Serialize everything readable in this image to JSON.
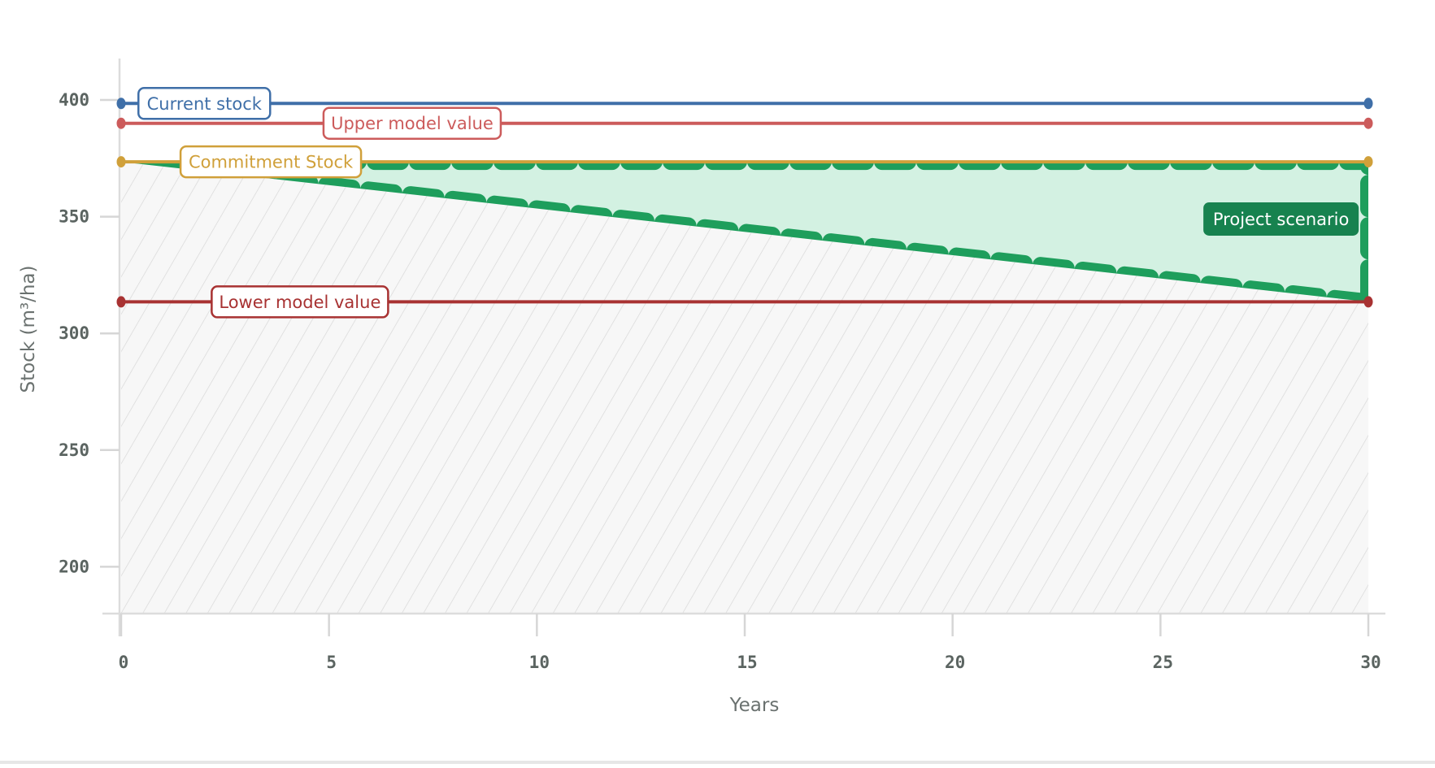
{
  "chart_data": {
    "type": "line",
    "title": "",
    "xlabel": "Years",
    "ylabel": "Stock (m³/ha)",
    "xlim": [
      0,
      30
    ],
    "ylim": [
      180,
      420
    ],
    "grid": false,
    "legend": "inline labels",
    "x_ticks": [
      0,
      5,
      10,
      15,
      20,
      25,
      30
    ],
    "y_ticks": [
      200,
      250,
      300,
      350,
      400
    ],
    "reference_lines": [
      {
        "name": "Current stock",
        "value": 398.5,
        "color": "#3f6fa8",
        "label_x": 2.0
      },
      {
        "name": "Upper model value",
        "value": 390,
        "color": "#cc5b5b",
        "label_x": 7.0
      },
      {
        "name": "Commitment Stock",
        "value": 373.5,
        "color": "#d0a03a",
        "label_x": 3.6
      },
      {
        "name": "Lower model value",
        "value": 313.5,
        "color": "#a83232",
        "label_x": 4.3
      }
    ],
    "series": [
      {
        "name": "Project scenario",
        "type": "area",
        "x": [
          0,
          30
        ],
        "upper": [
          373.5,
          373.5
        ],
        "lower": [
          373.5,
          313.5
        ],
        "fill": "#d3f1e2",
        "stroke": "#1e9e5c"
      }
    ],
    "baseline_area": {
      "name": "hatched region",
      "from": 180,
      "to_series": "Project scenario lower",
      "fill": "#f7f7f7",
      "hatch": "#d9d9d9"
    },
    "annotations": [
      {
        "text": "Project scenario",
        "x": 27.9,
        "y": 349,
        "bg": "#17824f",
        "color": "#ffffff"
      }
    ]
  },
  "axes": {
    "x_title": "Years",
    "y_title": "Stock (m³/ha)"
  },
  "labels": {
    "current_stock": "Current stock",
    "upper_model": "Upper model value",
    "commitment_stock": "Commitment Stock",
    "lower_model": "Lower model value",
    "project_scenario": "Project scenario"
  }
}
